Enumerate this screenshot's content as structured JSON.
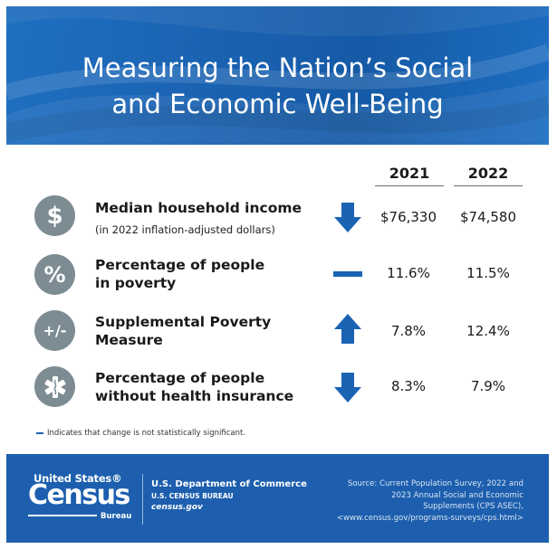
{
  "header": {
    "title_line1": "Measuring the Nation’s Social",
    "title_line2": "and Economic Well-Being"
  },
  "years": [
    "2021",
    "2022"
  ],
  "rows": [
    {
      "icon": "dollar-icon",
      "icon_glyph": "$",
      "label_line1": "Median household income",
      "label_line2": "",
      "sublabel": "(in 2022 inflation-adjusted dollars)",
      "trend": "down",
      "value_2021": "$76,330",
      "value_2022": "$74,580"
    },
    {
      "icon": "percent-icon",
      "icon_glyph": "%",
      "label_line1": "Percentage of people",
      "label_line2": "in poverty",
      "sublabel": "",
      "trend": "not-significant",
      "value_2021": "11.6%",
      "value_2022": "11.5%"
    },
    {
      "icon": "plus-minus-icon",
      "icon_glyph": "+/-",
      "label_line1": "Supplemental Poverty",
      "label_line2": "Measure",
      "sublabel": "",
      "trend": "up",
      "value_2021": "7.8%",
      "value_2022": "12.4%"
    },
    {
      "icon": "medical-star-icon",
      "icon_glyph": "",
      "label_line1": "Percentage of people",
      "label_line2": "without health insurance",
      "sublabel": "",
      "trend": "down",
      "value_2021": "8.3%",
      "value_2022": "7.9%"
    }
  ],
  "footnote": "Indicates that change is not statistically significant.",
  "footer": {
    "logo_top": "United States®",
    "logo_mid": "Census",
    "logo_bot": "Bureau",
    "dept_line1": "U.S. Department of Commerce",
    "dept_line2": "U.S. CENSUS BUREAU",
    "dept_line3": "census.gov",
    "source_line1": "Source: Current Population Survey, 2022 and",
    "source_line2": "2023 Annual Social and Economic",
    "source_line3": "Supplements (CPS ASEC),",
    "source_line4": "<www.census.gov/programs-surveys/cps.html>"
  },
  "colors": {
    "header_blue": "#1b63b3",
    "icon_gray": "#7d8b93",
    "arrow_blue": "#1b63b3",
    "footer_blue": "#1d5fae"
  }
}
